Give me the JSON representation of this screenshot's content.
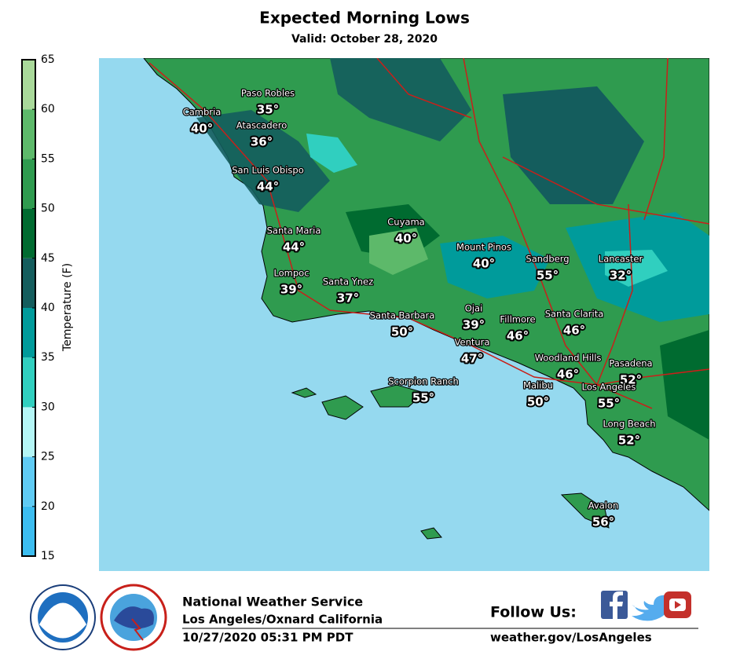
{
  "title": "Expected Morning Lows",
  "subtitle": "Valid: October 28, 2020",
  "colorbar": {
    "label": "Temperature (F)",
    "lim": [
      15,
      65
    ],
    "ticks": [
      15,
      20,
      25,
      30,
      35,
      40,
      45,
      50,
      55,
      60,
      65
    ],
    "colors": [
      "#3cbdf0",
      "#5fcbf4",
      "#b4f6f6",
      "#30cfbf",
      "#009b9b",
      "#145d5d",
      "#006b30",
      "#2f9b4f",
      "#5db96a",
      "#a9d99a"
    ]
  },
  "cities": [
    {
      "name": "Paso Robles",
      "label": "35°"
    },
    {
      "name": "Cambria",
      "label": "40°"
    },
    {
      "name": "Atascadero",
      "label": "36°"
    },
    {
      "name": "San Luis Obispo",
      "label": "44°"
    },
    {
      "name": "Cuyama",
      "label": "40°"
    },
    {
      "name": "Santa Maria",
      "label": "44°"
    },
    {
      "name": "Mount Pinos",
      "label": "40°"
    },
    {
      "name": "Sandberg",
      "label": "55°"
    },
    {
      "name": "Lancaster",
      "label": "32°"
    },
    {
      "name": "Lompoc",
      "label": "39°"
    },
    {
      "name": "Santa Ynez",
      "label": "37°"
    },
    {
      "name": "Ojai",
      "label": "39°"
    },
    {
      "name": "Santa Barbara",
      "label": "50°"
    },
    {
      "name": "Fillmore",
      "label": "46°"
    },
    {
      "name": "Santa Clarita",
      "label": "46°"
    },
    {
      "name": "Ventura",
      "label": "47°"
    },
    {
      "name": "Woodland Hills",
      "label": "46°"
    },
    {
      "name": "Pasadena",
      "label": "52°"
    },
    {
      "name": "Scorpion Ranch",
      "label": "55°"
    },
    {
      "name": "Malibu",
      "label": "50°"
    },
    {
      "name": "Los Angeles",
      "label": "55°"
    },
    {
      "name": "Long Beach",
      "label": "52°"
    },
    {
      "name": "Avalon",
      "label": "56°"
    }
  ],
  "footer": {
    "org": "National Weather Service",
    "office": "Los Angeles/Oxnard California",
    "timestamp": "10/27/2020 05:31 PM PDT",
    "follow": "Follow Us:",
    "url": "weather.gov/LosAngeles"
  }
}
